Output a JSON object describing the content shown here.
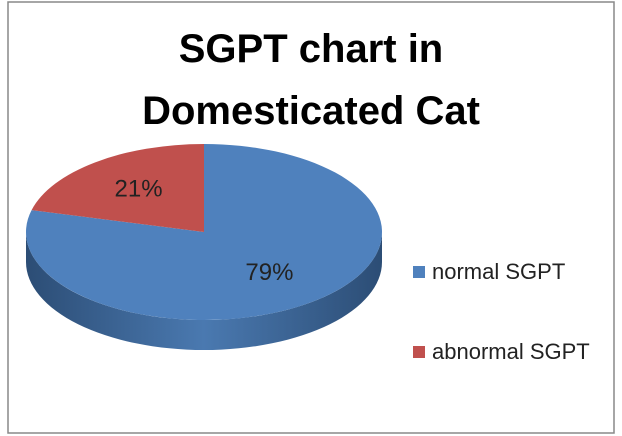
{
  "chart_data": {
    "type": "pie",
    "title": "SGPT chart in Domesticated Cat",
    "categories": [
      "normal SGPT",
      "abnormal SGPT"
    ],
    "values": [
      79,
      21
    ],
    "value_labels": [
      "79%",
      "21%"
    ],
    "colors": [
      "#4f81bd",
      "#c0504d"
    ],
    "legend": "right"
  }
}
